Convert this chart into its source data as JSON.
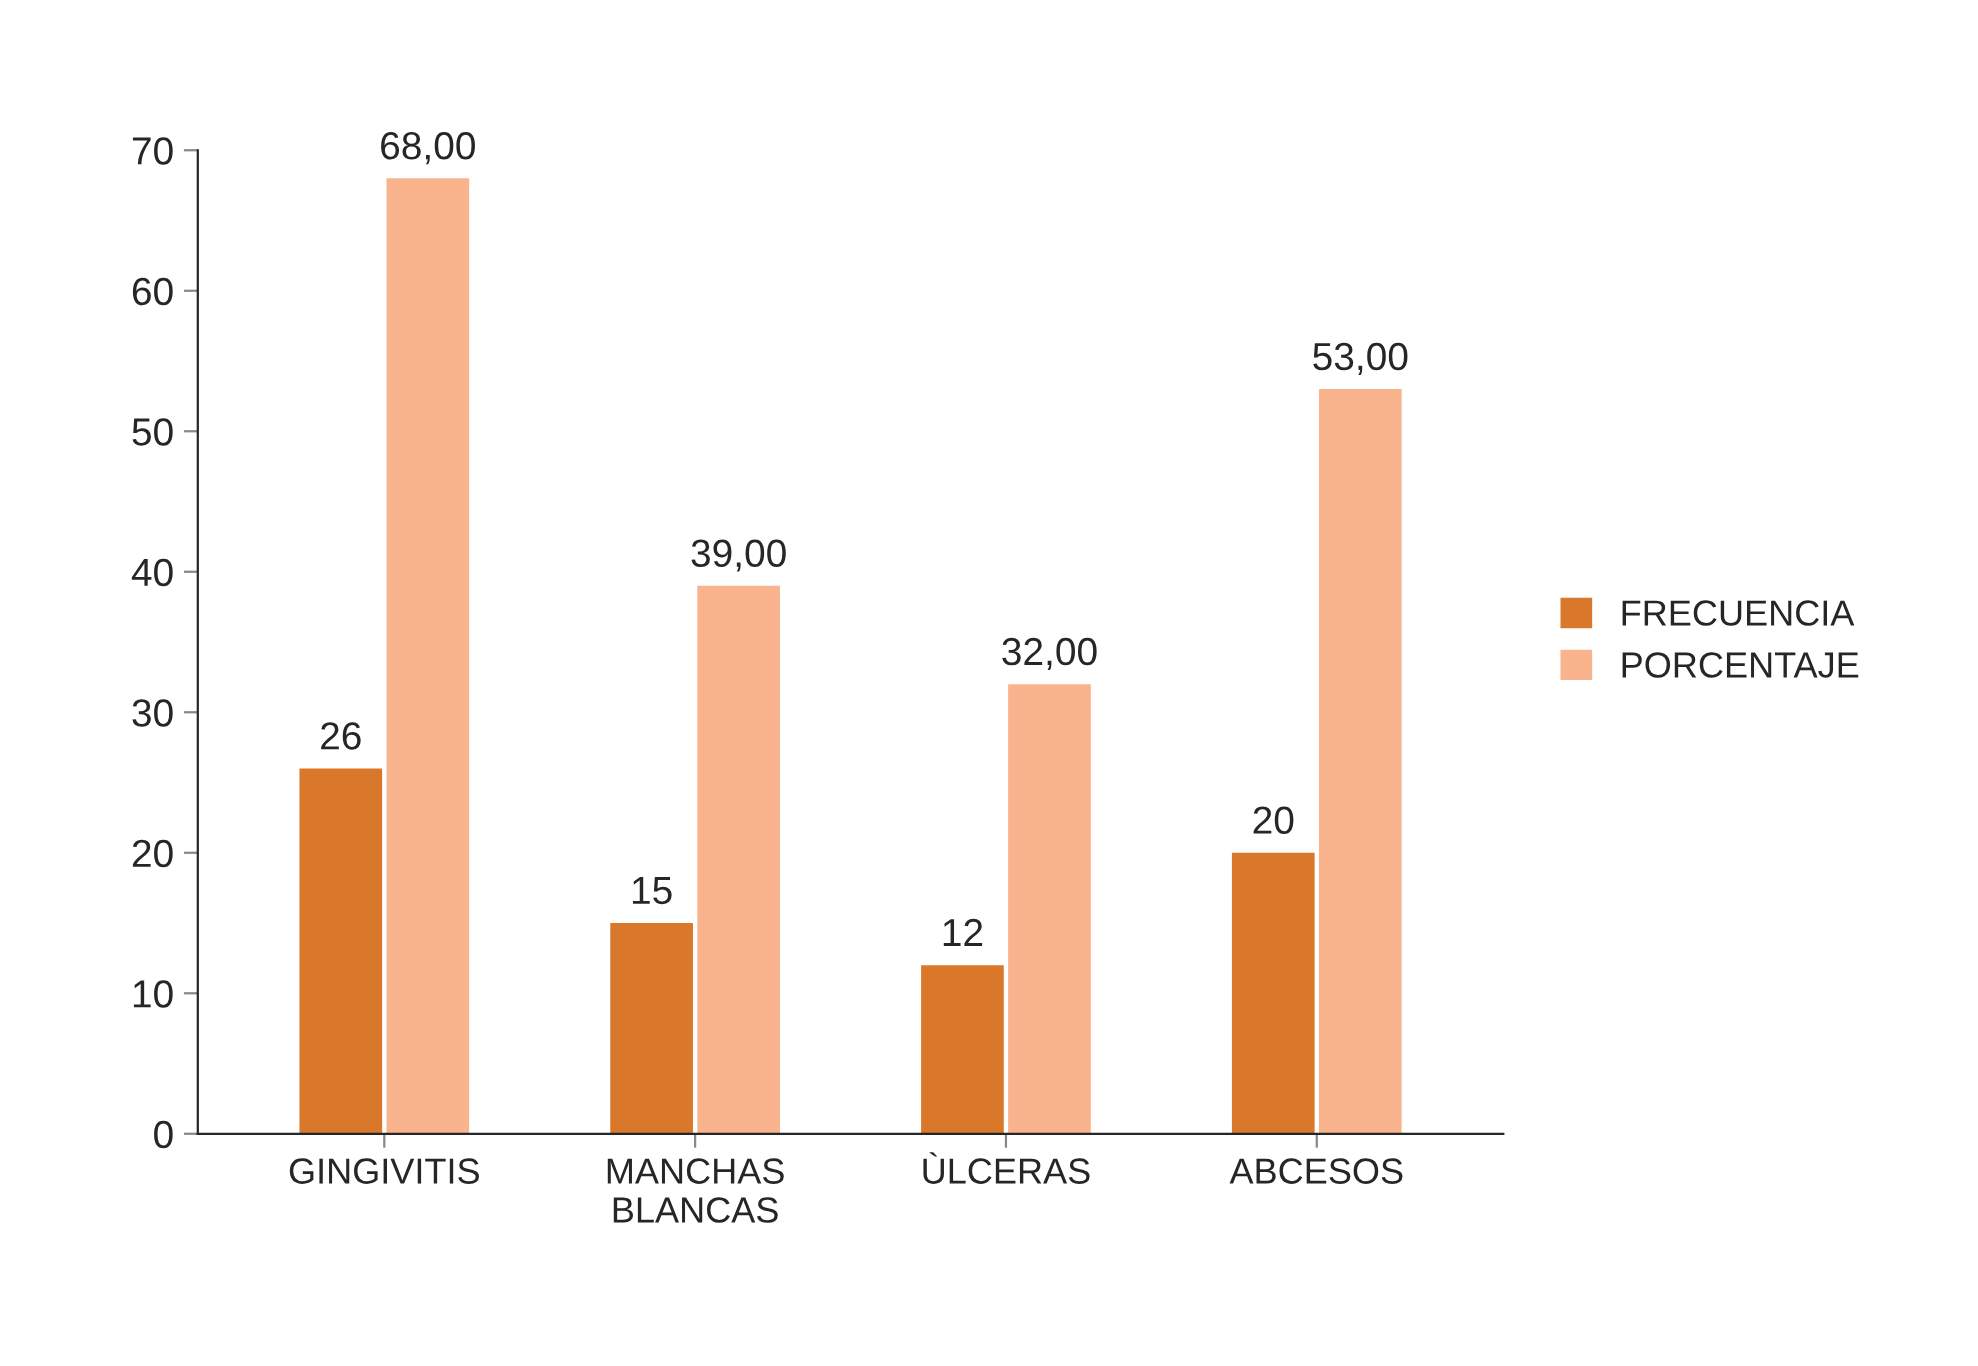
{
  "chart_data": {
    "type": "bar",
    "categories": [
      "GINGIVITIS",
      "MANCHAS\nBLANCAS",
      "ÙLCERAS",
      "ABCESOS"
    ],
    "series": [
      {
        "name": "FRECUENCIA",
        "color": "#d9782a",
        "values": [
          26,
          15,
          12,
          20
        ],
        "value_labels": [
          "26",
          "15",
          "12",
          "20"
        ]
      },
      {
        "name": "PORCENTAJE",
        "color": "#f9b48e",
        "values": [
          68,
          39,
          32,
          53
        ],
        "value_labels": [
          "68,00",
          "39,00",
          "32,00",
          "53,00"
        ]
      }
    ],
    "ylim": [
      0,
      70
    ],
    "yticks": [
      0,
      10,
      20,
      30,
      40,
      50,
      60,
      70
    ],
    "grid": false,
    "legend": "right"
  }
}
